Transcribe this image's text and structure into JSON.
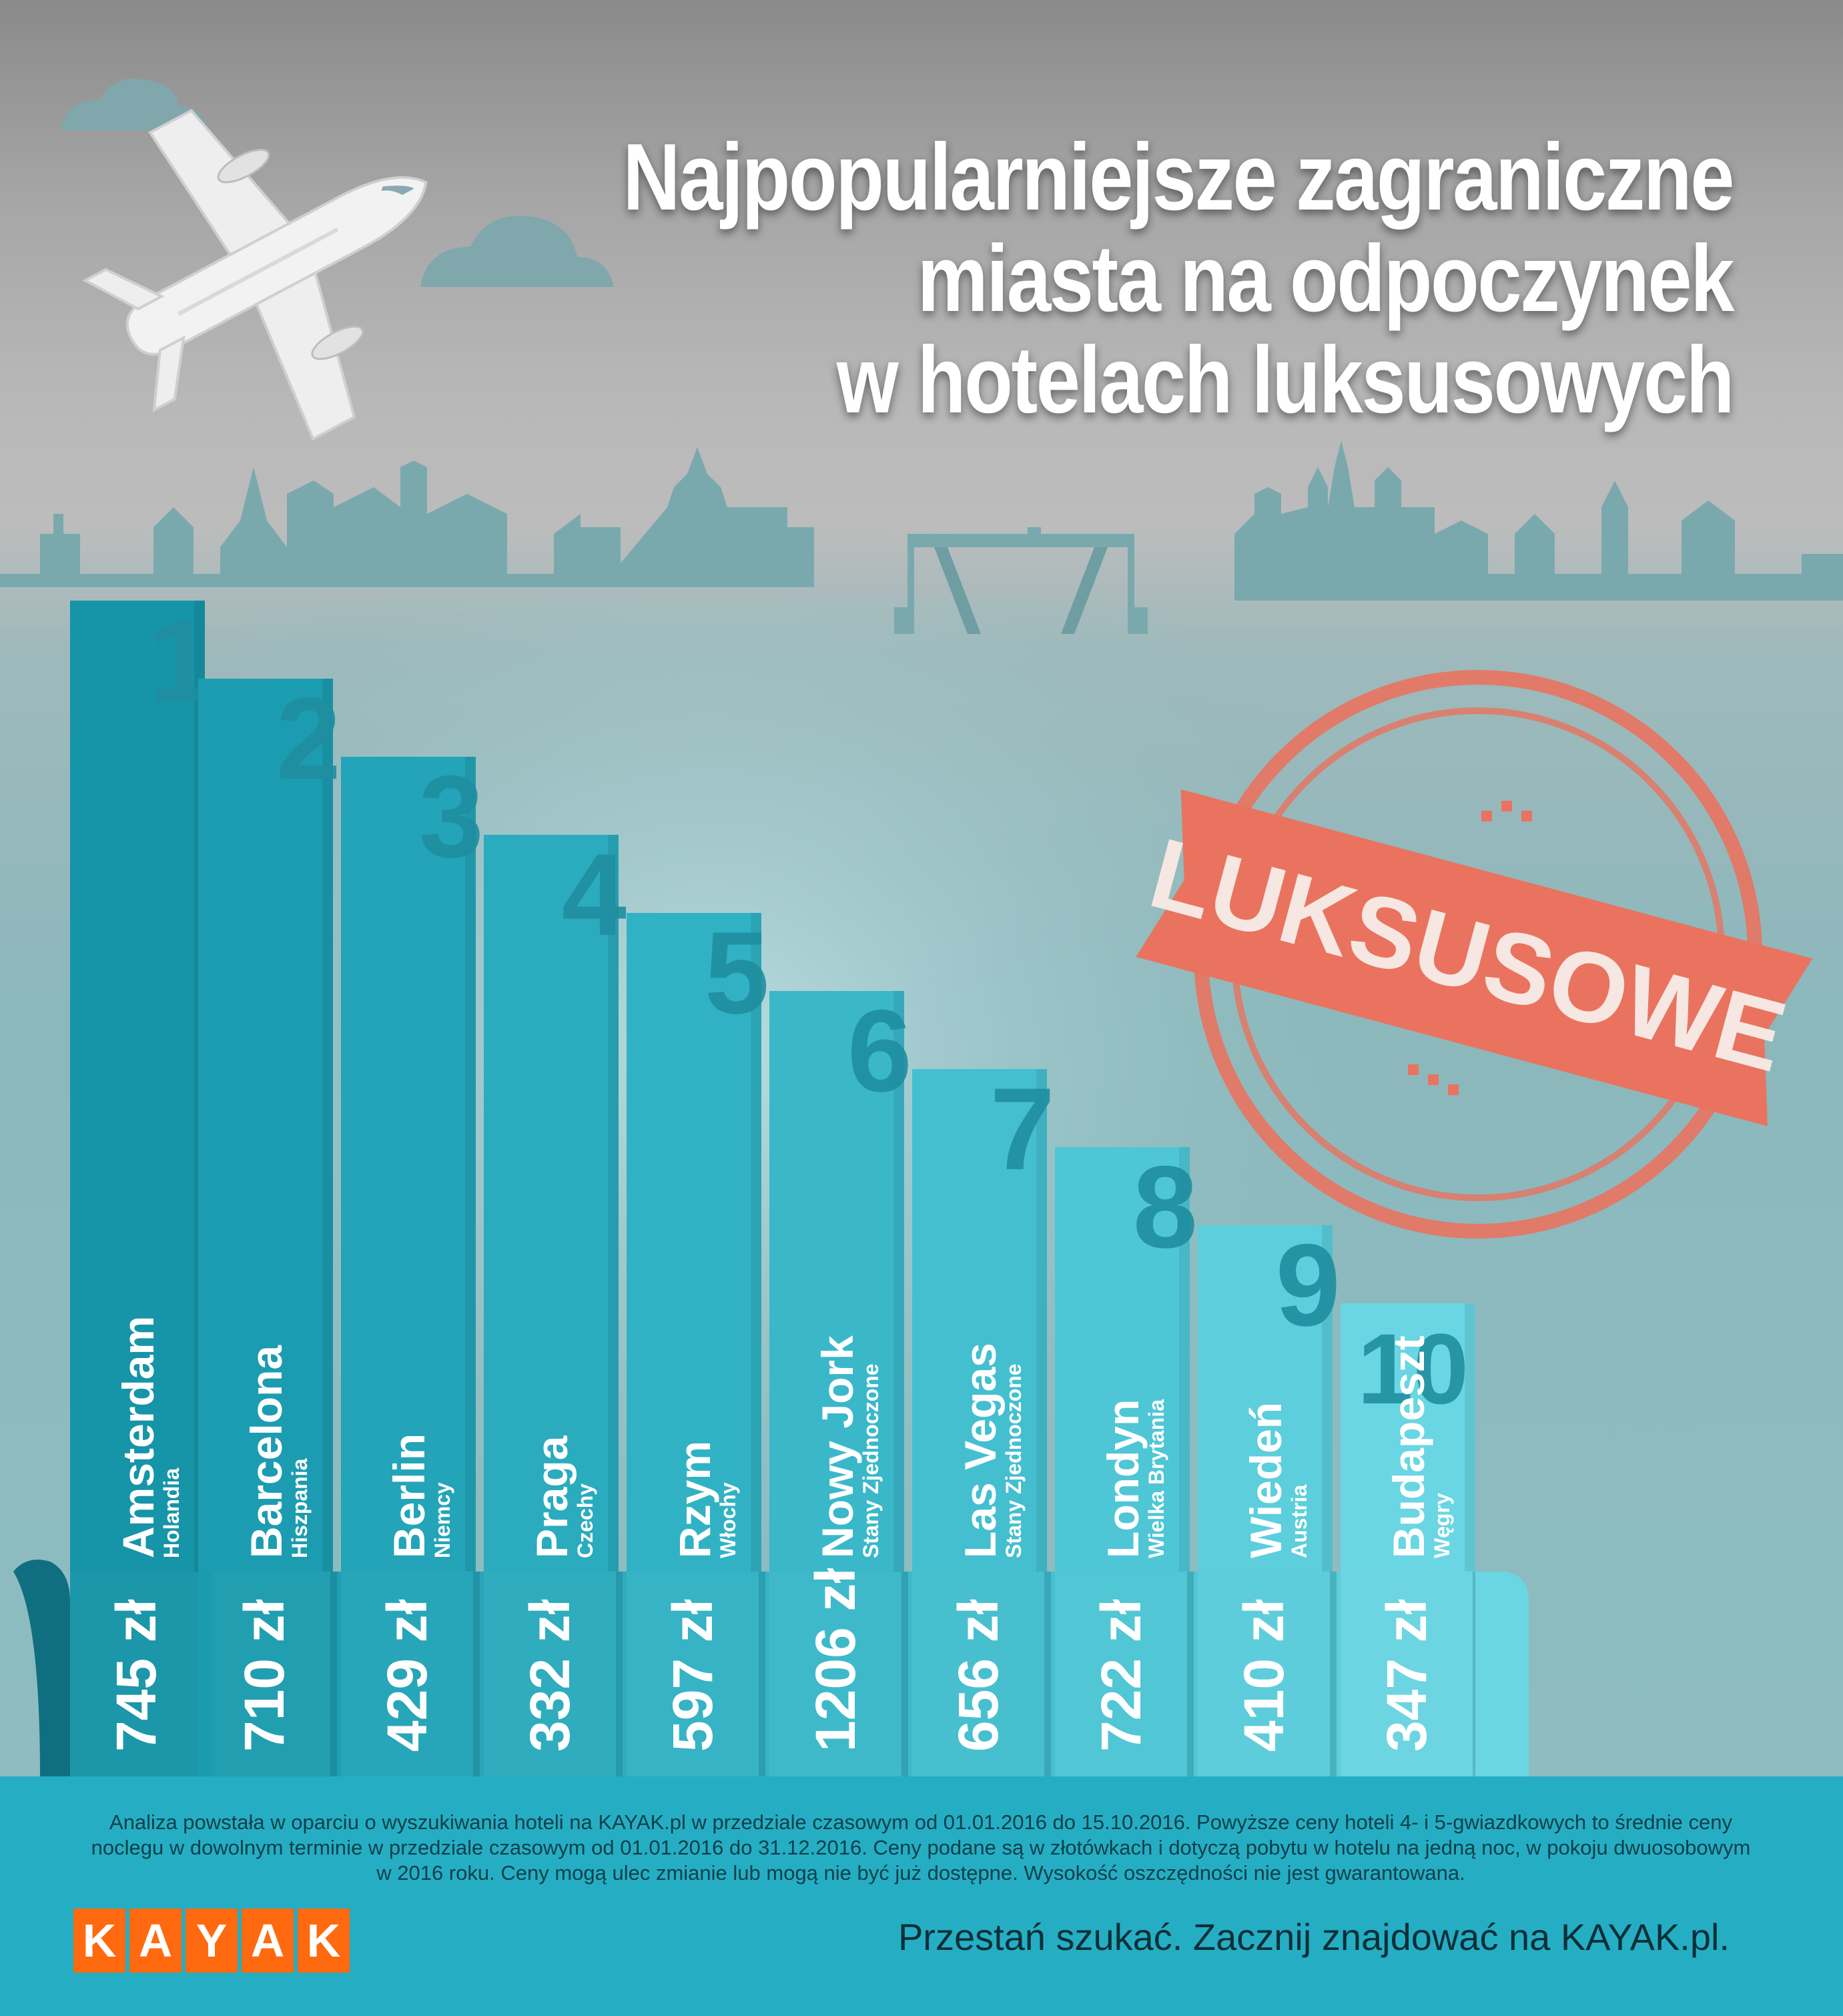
{
  "title": {
    "line1": "Najpopularniejsze zagraniczne",
    "line2": "miasta na odpoczynek",
    "line3": "w hotelach luksusowych"
  },
  "stamp": {
    "label": "LUKSUSOWE"
  },
  "chart_data": {
    "type": "bar",
    "title": "Najpopularniejsze zagraniczne miasta na odpoczynek w hotelach luksusowych",
    "ranks": [
      "1",
      "2",
      "3",
      "4",
      "5",
      "6",
      "7",
      "8",
      "9",
      "10"
    ],
    "categories": [
      "Amsterdam",
      "Barcelona",
      "Berlin",
      "Praga",
      "Rzym",
      "Nowy Jork",
      "Las Vegas",
      "Londyn",
      "Wiedeń",
      "Budapeszt"
    ],
    "countries": [
      "Holandia",
      "Hiszpania",
      "Niemcy",
      "Czechy",
      "Włochy",
      "Stany Zjednoczone",
      "Stany Zjednoczone",
      "Wielka Brytania",
      "Austria",
      "Węgry"
    ],
    "values": [
      745,
      710,
      429,
      332,
      597,
      1206,
      656,
      722,
      410,
      347
    ],
    "price_labels": [
      "745 zł",
      "710 zł",
      "429 zł",
      "332 zł",
      "597 zł",
      "1206 zł",
      "656 zł",
      "722 zł",
      "410 zł",
      "347 zł"
    ],
    "unit": "zł",
    "colors": [
      "#1694a8",
      "#1c9cb0",
      "#23a4b8",
      "#2aabbe",
      "#31b2c4",
      "#3ab8ca",
      "#44bfd0",
      "#4ec6d6",
      "#5ccedc",
      "#6ad6e3"
    ]
  },
  "footer": {
    "note": "Analiza powstała w oparciu o wyszukiwania hoteli na KAYAK.pl w przedziale czasowym od 01.01.2016 do 15.10.2016. Powyższe ceny hoteli 4- i 5-gwiazdkowych to średnie ceny noclegu w dowolnym terminie w przedziale czasowym od 01.01.2016 do 31.12.2016. Ceny podane są w złotówkach i dotyczą pobytu w hotelu na jedną noc, w pokoju dwuosobowym w 2016 roku. Ceny mogą ulec zmianie lub mogą nie być już dostępne. Wysokość oszczędności nie jest gwarantowana.",
    "logo_letters": [
      "K",
      "A",
      "Y",
      "A",
      "K"
    ],
    "slogan": "Przestań szukać. Zacznij znajdować na KAYAK.pl."
  }
}
